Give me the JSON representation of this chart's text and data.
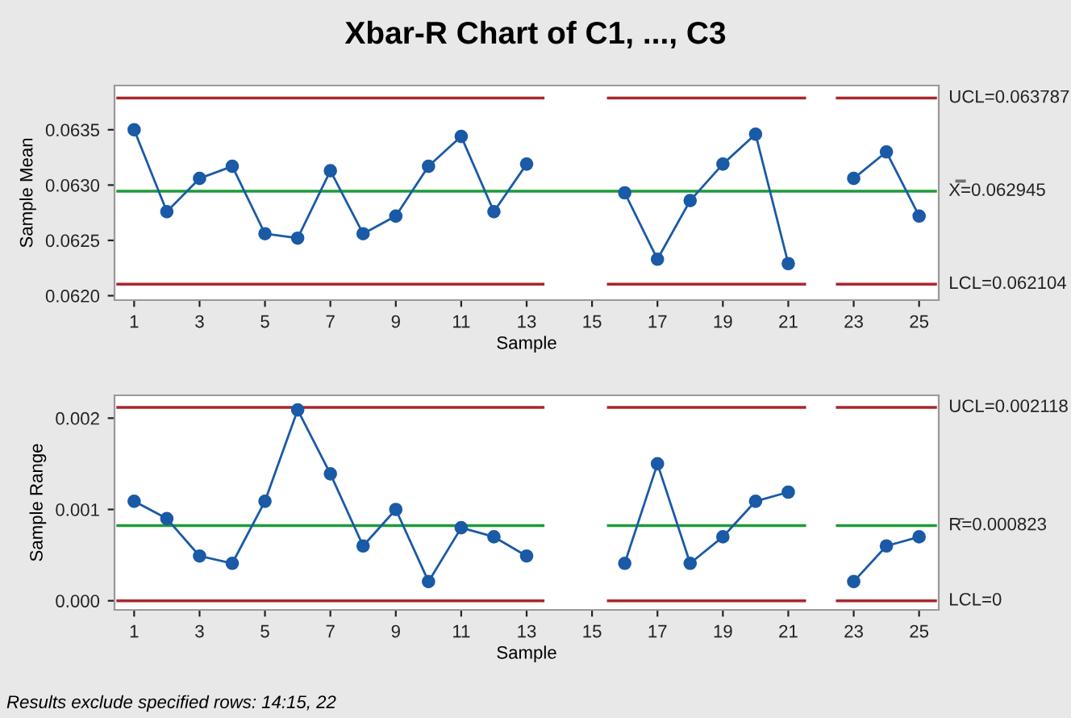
{
  "chart_data": [
    {
      "type": "line",
      "title": "Xbar-R Chart of C1, ..., C3",
      "xlabel": "Sample",
      "ylabel": "Sample Mean",
      "xlim": [
        0.4,
        25.6
      ],
      "xticks": [
        1,
        3,
        5,
        7,
        9,
        11,
        13,
        15,
        17,
        19,
        21,
        23,
        25
      ],
      "ylim": [
        0.06196,
        0.0639
      ],
      "yticks": [
        {
          "value": 0.062,
          "label": "0.0620"
        },
        {
          "value": 0.0625,
          "label": "0.0625"
        },
        {
          "value": 0.063,
          "label": "0.0630"
        },
        {
          "value": 0.0635,
          "label": "0.0635"
        }
      ],
      "grid": false,
      "legend": false,
      "series": [
        {
          "name": "UCL=0.063787",
          "color": "#a8282c",
          "marker": "none",
          "x": [
            0.5,
            13.5,
            14,
            15.5,
            21.5,
            22,
            22.5,
            25.5
          ],
          "values": [
            0.063787,
            0.063787,
            null,
            0.063787,
            0.063787,
            null,
            0.063787,
            0.063787
          ]
        },
        {
          "name": "X̿=0.062945",
          "color": "#1f9a38",
          "marker": "none",
          "x": [
            0.5,
            25.5
          ],
          "values": [
            0.062945,
            0.062945
          ]
        },
        {
          "name": "LCL=0.062104",
          "color": "#a8282c",
          "marker": "none",
          "x": [
            0.5,
            13.5,
            14,
            15.5,
            21.5,
            22,
            22.5,
            25.5
          ],
          "values": [
            0.062104,
            0.062104,
            null,
            0.062104,
            0.062104,
            null,
            0.062104,
            0.062104
          ]
        },
        {
          "color": "#1a5aa6",
          "marker": "circle",
          "x": [
            1,
            2,
            3,
            4,
            5,
            6,
            7,
            8,
            9,
            10,
            11,
            12,
            13,
            14,
            15,
            16,
            17,
            18,
            19,
            20,
            21,
            22,
            23,
            24,
            25
          ],
          "values": [
            0.0635,
            0.06276,
            0.06306,
            0.06317,
            0.06256,
            0.06252,
            0.06313,
            0.06256,
            0.06272,
            0.06317,
            0.06344,
            0.06276,
            0.06319,
            null,
            null,
            0.06293,
            0.06233,
            0.06286,
            0.06319,
            0.06346,
            0.06229,
            null,
            0.06306,
            0.0633,
            0.06272
          ]
        }
      ]
    },
    {
      "type": "line",
      "xlabel": "Sample",
      "ylabel": "Sample Range",
      "xlim": [
        0.4,
        25.6
      ],
      "xticks": [
        1,
        3,
        5,
        7,
        9,
        11,
        13,
        15,
        17,
        19,
        21,
        23,
        25
      ],
      "ylim": [
        -0.0001,
        0.00225
      ],
      "yticks": [
        {
          "value": 0,
          "label": "0.000"
        },
        {
          "value": 0.001,
          "label": "0.001"
        },
        {
          "value": 0.002,
          "label": "0.002"
        }
      ],
      "grid": false,
      "legend": false,
      "annotations": [
        "Results exclude specified rows: 14:15, 22"
      ],
      "series": [
        {
          "name": "UCL=0.002118",
          "color": "#a8282c",
          "marker": "none",
          "x": [
            0.5,
            13.5,
            14,
            15.5,
            21.5,
            22,
            22.5,
            25.5
          ],
          "values": [
            0.002118,
            0.002118,
            null,
            0.002118,
            0.002118,
            null,
            0.002118,
            0.002118
          ]
        },
        {
          "name": "R̄=0.000823",
          "color": "#1f9a38",
          "marker": "none",
          "x": [
            0.5,
            13.5,
            14,
            15.5,
            21.5,
            22,
            22.5,
            25.5
          ],
          "values": [
            0.000823,
            0.000823,
            null,
            0.000823,
            0.000823,
            null,
            0.000823,
            0.000823
          ]
        },
        {
          "name": "LCL=0",
          "color": "#a8282c",
          "marker": "none",
          "x": [
            0.5,
            13.5,
            14,
            15.5,
            21.5,
            22,
            22.5,
            25.5
          ],
          "values": [
            0,
            0,
            null,
            0,
            0,
            null,
            0,
            0
          ]
        },
        {
          "color": "#1a5aa6",
          "marker": "circle",
          "x": [
            1,
            2,
            3,
            4,
            5,
            6,
            7,
            8,
            9,
            10,
            11,
            12,
            13,
            14,
            15,
            16,
            17,
            18,
            19,
            20,
            21,
            22,
            23,
            24,
            25
          ],
          "values": [
            0.00109,
            0.0009,
            0.00049,
            0.00041,
            0.00109,
            0.00209,
            0.00139,
            0.0006,
            0.001,
            0.00021,
            0.0008,
            0.0007,
            0.00049,
            null,
            null,
            0.00041,
            0.0015,
            0.00041,
            0.0007,
            0.00109,
            0.00119,
            null,
            0.00021,
            0.0006,
            0.0007
          ]
        }
      ]
    }
  ]
}
